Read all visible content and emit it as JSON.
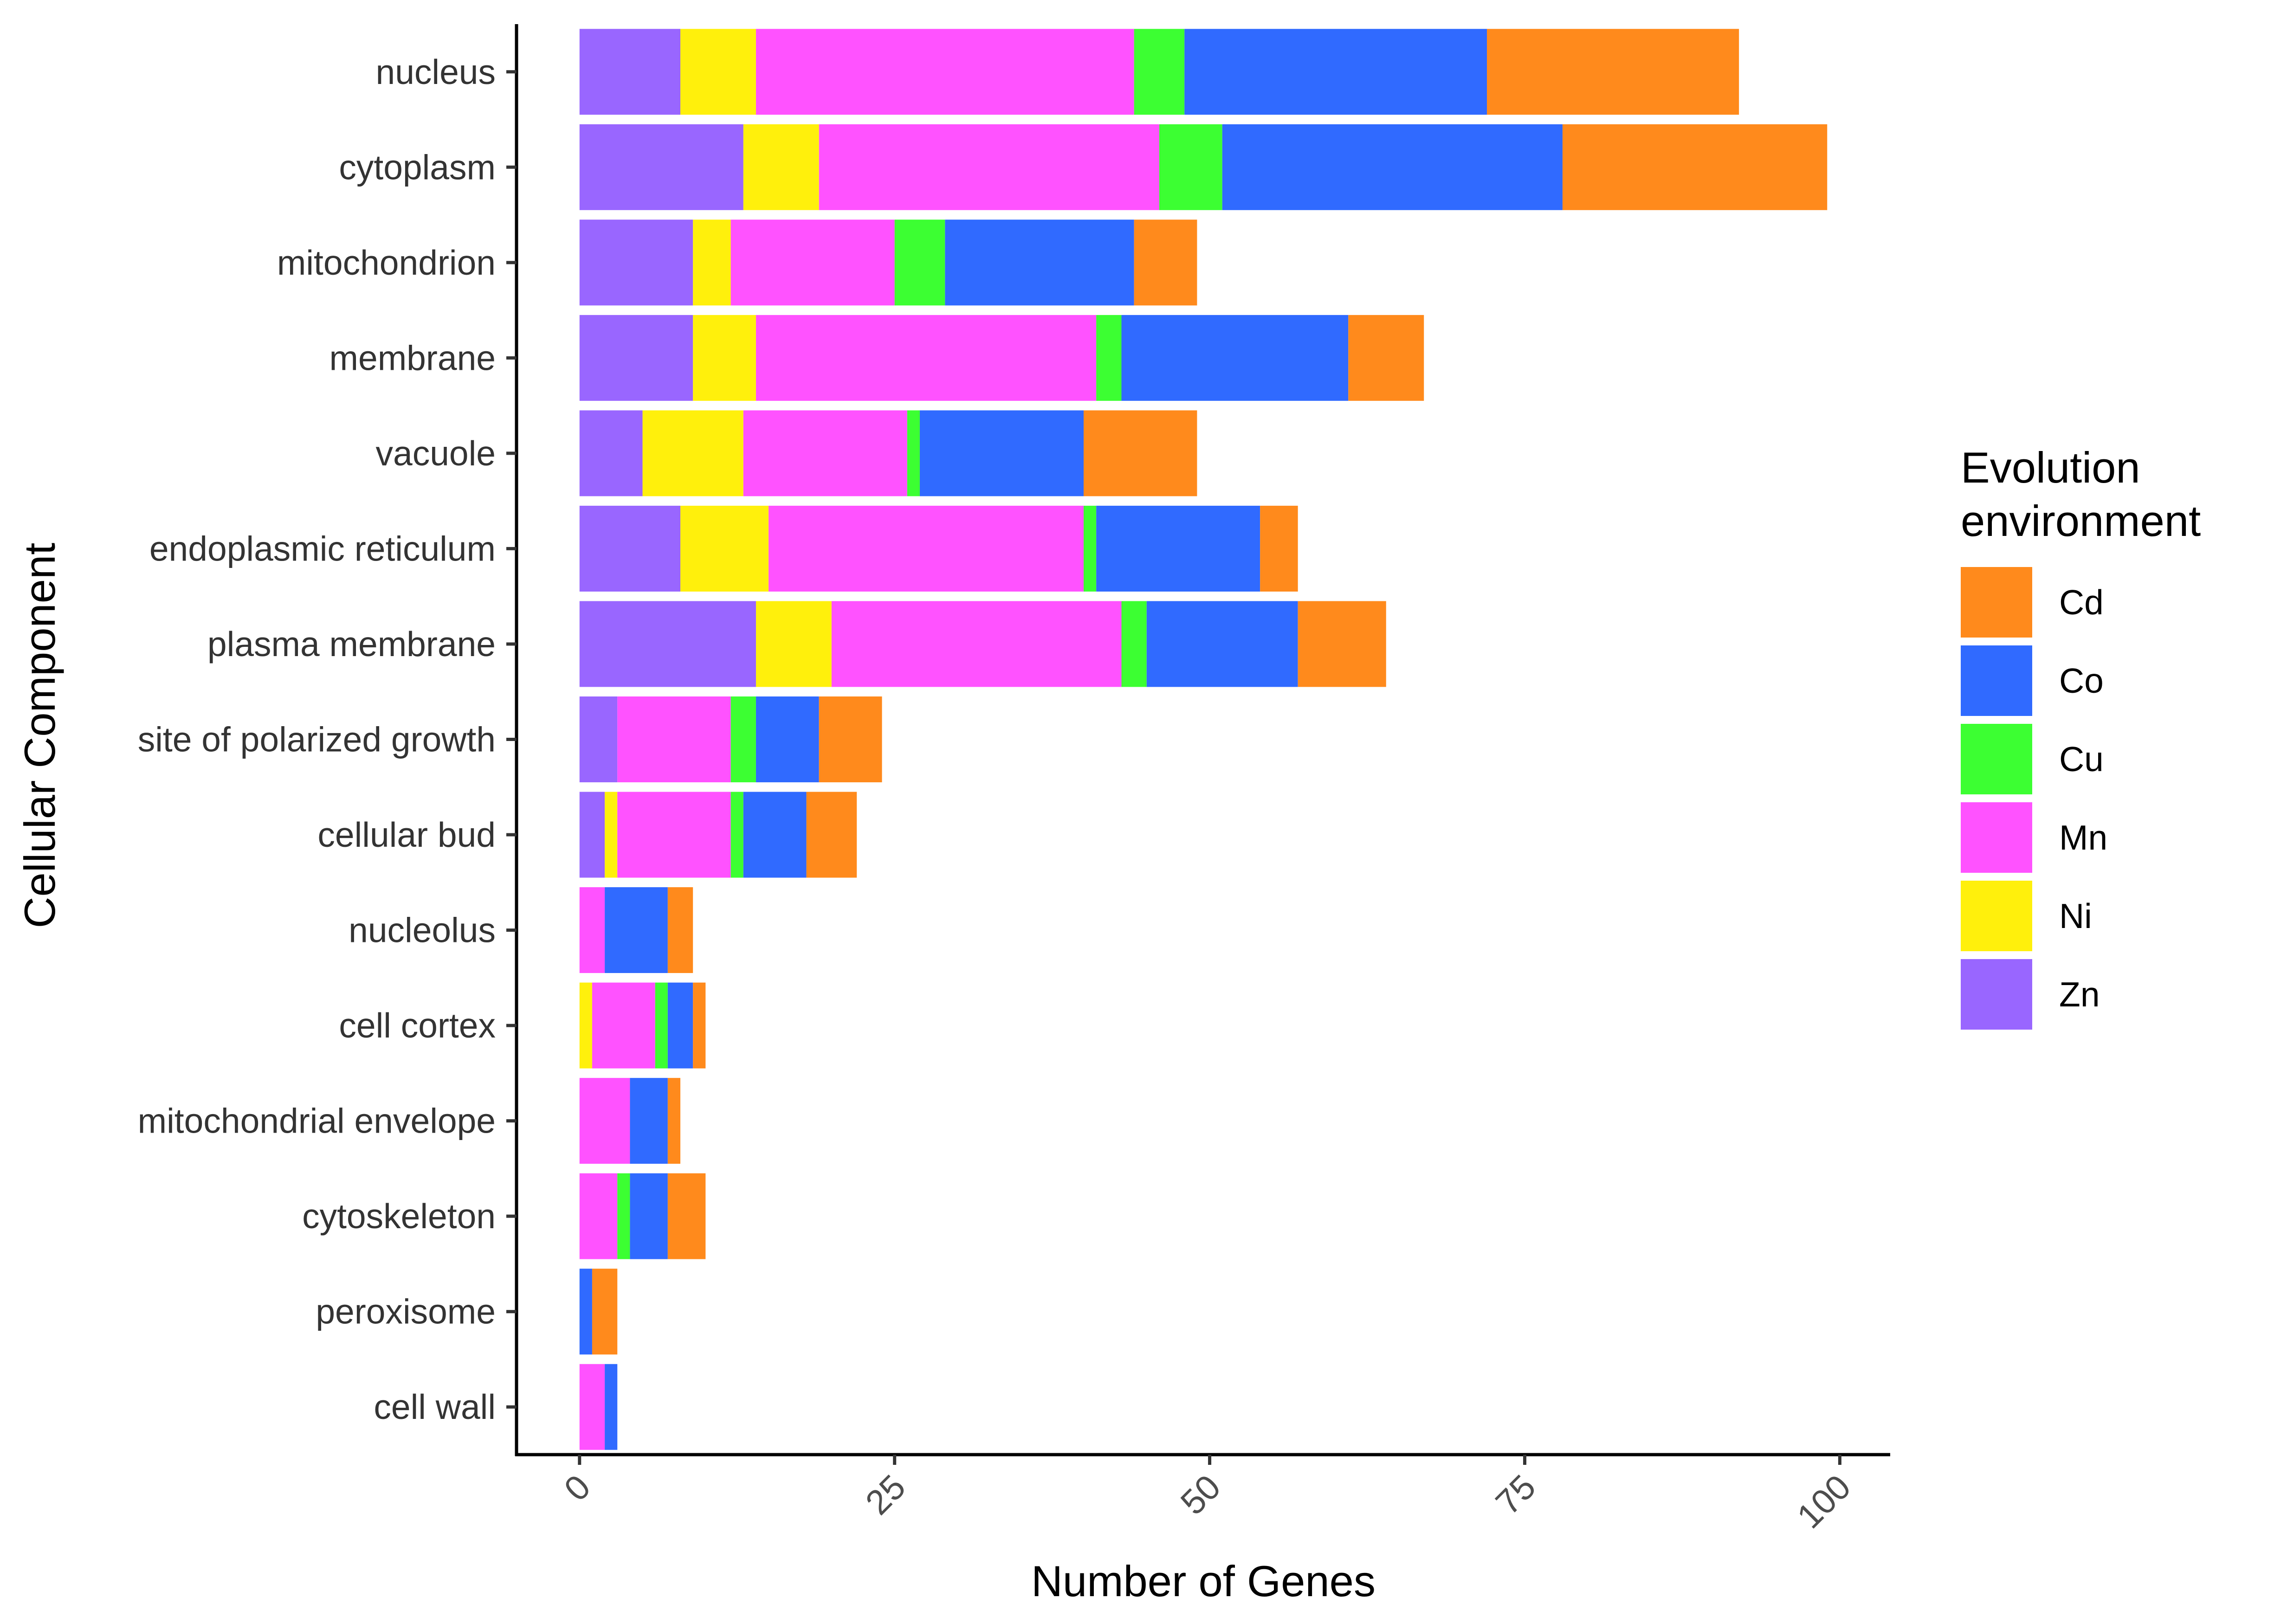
{
  "chart_data": {
    "type": "bar",
    "orientation": "horizontal",
    "stacked": true,
    "xlabel": "Number of Genes",
    "ylabel": "Cellular Component",
    "xlim": [
      -5,
      104
    ],
    "xticks": [
      0,
      25,
      50,
      75,
      100
    ],
    "grid": false,
    "legend": {
      "title_lines": [
        "Evolution",
        "environment"
      ],
      "placement": "right",
      "entries": [
        "Cd",
        "Co",
        "Cu",
        "Mn",
        "Ni",
        "Zn"
      ]
    },
    "categories": [
      "nucleus",
      "cytoplasm",
      "mitochondrion",
      "membrane",
      "vacuole",
      "endoplasmic reticulum",
      "plasma membrane",
      "site of polarized growth",
      "cellular bud",
      "nucleolus",
      "cell cortex",
      "mitochondrial envelope",
      "cytoskeleton",
      "peroxisome",
      "cell wall"
    ],
    "series": [
      {
        "name": "Zn",
        "color": "#9966FF",
        "values": [
          8,
          13,
          9,
          9,
          5,
          8,
          14,
          3,
          2,
          0,
          0,
          0,
          0,
          0,
          0
        ]
      },
      {
        "name": "Ni",
        "color": "#FFF00C",
        "values": [
          6,
          6,
          3,
          5,
          8,
          7,
          6,
          0,
          1,
          0,
          1,
          0,
          0,
          0,
          0
        ]
      },
      {
        "name": "Mn",
        "color": "#FF52FF",
        "values": [
          30,
          27,
          13,
          27,
          13,
          25,
          23,
          9,
          9,
          2,
          5,
          4,
          3,
          0,
          2
        ]
      },
      {
        "name": "Cu",
        "color": "#3CFF32",
        "values": [
          4,
          5,
          4,
          2,
          1,
          1,
          2,
          2,
          1,
          0,
          1,
          0,
          1,
          0,
          0
        ]
      },
      {
        "name": "Co",
        "color": "#306AFF",
        "values": [
          24,
          27,
          15,
          18,
          13,
          13,
          12,
          5,
          5,
          5,
          2,
          3,
          3,
          1,
          1
        ]
      },
      {
        "name": "Cd",
        "color": "#FF8A1C",
        "values": [
          20,
          21,
          5,
          6,
          9,
          3,
          7,
          5,
          4,
          2,
          1,
          1,
          3,
          2,
          0
        ]
      }
    ]
  }
}
